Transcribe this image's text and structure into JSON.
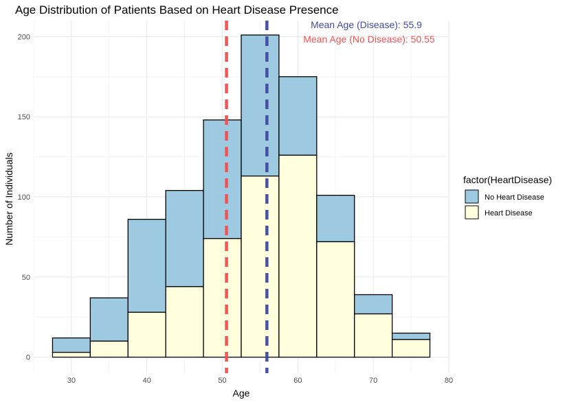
{
  "chart_data": {
    "type": "bar",
    "stacked": true,
    "title": "Age Distribution of Patients Based on Heart Disease Presence",
    "xlabel": "Age",
    "ylabel": "Number of Individuals",
    "xlim": [
      25,
      80
    ],
    "ylim": [
      -10,
      210
    ],
    "x_ticks": [
      30,
      40,
      50,
      60,
      70,
      80
    ],
    "y_ticks": [
      0,
      50,
      100,
      150,
      200
    ],
    "grid": true,
    "bins": [
      {
        "x0": 27.5,
        "x1": 32.5,
        "heart_disease": 3,
        "no_heart_disease": 9
      },
      {
        "x0": 32.5,
        "x1": 37.5,
        "heart_disease": 10,
        "no_heart_disease": 27
      },
      {
        "x0": 37.5,
        "x1": 42.5,
        "heart_disease": 28,
        "no_heart_disease": 58
      },
      {
        "x0": 42.5,
        "x1": 47.5,
        "heart_disease": 44,
        "no_heart_disease": 60
      },
      {
        "x0": 47.5,
        "x1": 52.5,
        "heart_disease": 74,
        "no_heart_disease": 74
      },
      {
        "x0": 52.5,
        "x1": 57.5,
        "heart_disease": 113,
        "no_heart_disease": 88
      },
      {
        "x0": 57.5,
        "x1": 62.5,
        "heart_disease": 126,
        "no_heart_disease": 49
      },
      {
        "x0": 62.5,
        "x1": 67.5,
        "heart_disease": 72,
        "no_heart_disease": 29
      },
      {
        "x0": 67.5,
        "x1": 72.5,
        "heart_disease": 27,
        "no_heart_disease": 12
      },
      {
        "x0": 72.5,
        "x1": 77.5,
        "heart_disease": 11,
        "no_heart_disease": 4
      }
    ],
    "legend": {
      "title": "factor(HeartDisease)",
      "placement": "right",
      "entries": [
        {
          "label": "No Heart Disease",
          "color": "#9ecae1"
        },
        {
          "label": "Heart Disease",
          "color": "#ffffdd"
        }
      ]
    },
    "reference_lines": [
      {
        "x": 55.9,
        "color": "#3f4aa0",
        "label": "Mean Age (Disease): 55.9"
      },
      {
        "x": 50.55,
        "color": "#f05050",
        "label": "Mean Age (No Disease): 50.55"
      }
    ],
    "colors": {
      "no_heart_disease": "#9ecae1",
      "heart_disease": "#ffffdd",
      "bar_outline": "#000000",
      "grid_major": "#ebebeb",
      "grid_minor": "#f5f5f5"
    }
  }
}
